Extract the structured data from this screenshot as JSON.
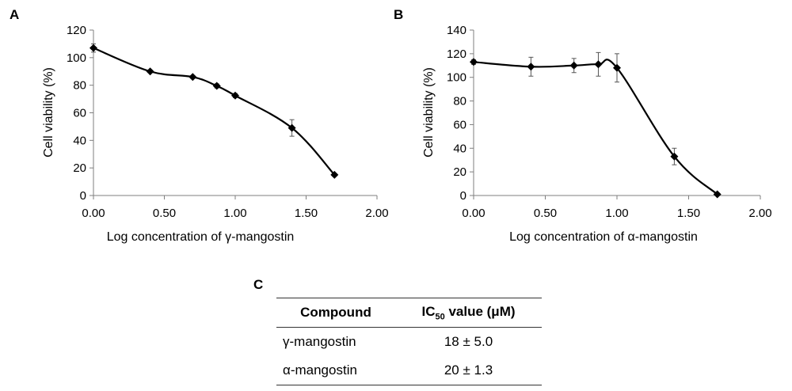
{
  "chart_data": [
    {
      "type": "line",
      "panel_label": "A",
      "xlabel": "Log concentration of γ-mangostin",
      "ylabel": "Cell viability (%)",
      "xlim": [
        0,
        2
      ],
      "ylim": [
        0,
        120
      ],
      "x_ticks": [
        "0.00",
        "0.50",
        "1.00",
        "1.50",
        "2.00"
      ],
      "y_ticks": [
        "0",
        "20",
        "40",
        "60",
        "80",
        "100",
        "120"
      ],
      "grid": false,
      "series": [
        {
          "x": [
            0.0,
            0.4,
            0.7,
            0.87,
            1.0,
            1.4,
            1.7
          ],
          "y": [
            107,
            90,
            86,
            79.5,
            72.5,
            49,
            15
          ],
          "err": [
            3,
            1,
            1,
            1.5,
            1.5,
            6,
            1
          ]
        }
      ]
    },
    {
      "type": "line",
      "panel_label": "B",
      "xlabel": "Log concentration of α-mangostin",
      "ylabel": "Cell viability (%)",
      "xlim": [
        0,
        2
      ],
      "ylim": [
        0,
        140
      ],
      "x_ticks": [
        "0.00",
        "0.50",
        "1.00",
        "1.50",
        "2.00"
      ],
      "y_ticks": [
        "0",
        "20",
        "40",
        "60",
        "80",
        "100",
        "120",
        "140"
      ],
      "grid": false,
      "series": [
        {
          "x": [
            0.0,
            0.4,
            0.7,
            0.87,
            1.0,
            1.4,
            1.7
          ],
          "y": [
            113,
            109,
            110,
            111,
            108,
            33,
            1
          ],
          "err": [
            2,
            8,
            6,
            10,
            12,
            7,
            1
          ]
        }
      ]
    }
  ],
  "table": {
    "panel_label": "C",
    "headers": [
      "Compound",
      "IC",
      "50",
      " value (μM)"
    ],
    "rows": [
      {
        "compound": "γ-mangostin",
        "value": "18 ± 5.0"
      },
      {
        "compound": "α-mangostin",
        "value": "20 ± 1.3"
      }
    ]
  }
}
